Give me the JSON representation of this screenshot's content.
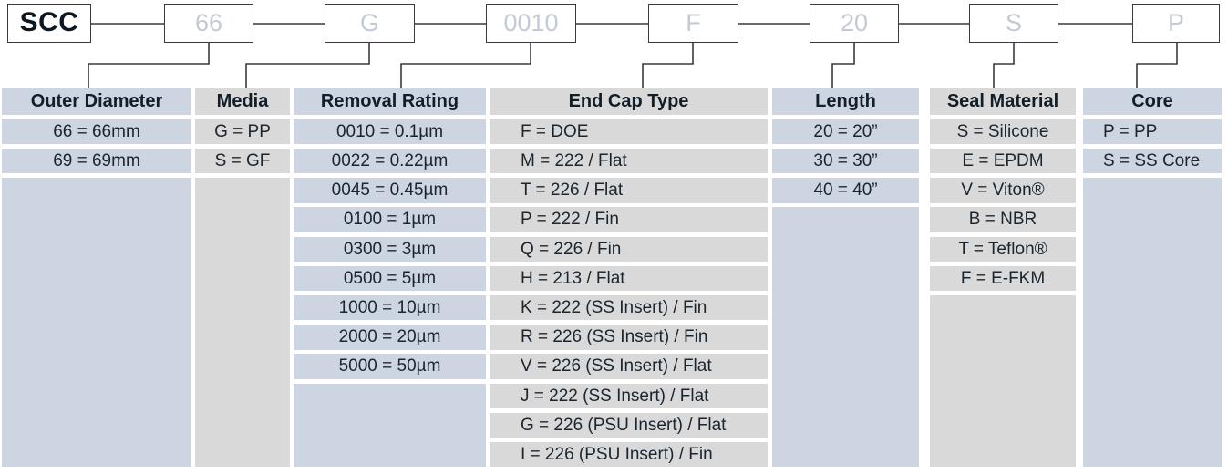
{
  "part_code": {
    "segments": [
      {
        "label": "SCC"
      },
      {
        "label": "66"
      },
      {
        "label": "G"
      },
      {
        "label": "0010"
      },
      {
        "label": "F"
      },
      {
        "label": "20"
      },
      {
        "label": "S"
      },
      {
        "label": "P"
      }
    ]
  },
  "table": {
    "columns": [
      {
        "header": "Outer Diameter",
        "entries": [
          "66 = 66mm",
          "69 = 69mm"
        ]
      },
      {
        "header": "Media",
        "entries": [
          "G = PP",
          "S = GF"
        ]
      },
      {
        "header": "Removal Rating",
        "entries": [
          "0010 = 0.1µm",
          "0022 = 0.22µm",
          "0045 = 0.45µm",
          "0100 = 1µm",
          "0300 = 3µm",
          "0500 = 5µm",
          "1000 = 10µm",
          "2000 = 20µm",
          "5000 = 50µm"
        ]
      },
      {
        "header": "End Cap Type",
        "entries": [
          "F = DOE",
          "M = 222 / Flat",
          "T = 226 / Flat",
          "P = 222 / Fin",
          "Q = 226 / Fin",
          "H = 213 / Flat",
          "K = 222 (SS Insert) / Fin",
          "R = 226 (SS Insert) / Fin",
          "V = 226 (SS Insert) / Flat",
          "J = 222 (SS Insert) / Flat",
          "G = 226 (PSU Insert) / Flat",
          "I = 226 (PSU Insert) / Fin"
        ]
      },
      {
        "header": "Length",
        "entries": [
          "20 = 20”",
          "30 = 30”",
          "40 = 40”"
        ]
      },
      {
        "header": "Seal Material",
        "entries": [
          "S = Silicone",
          "E = EPDM",
          "V = Viton®",
          "B = NBR",
          "T = Teflon®",
          "F = E-FKM"
        ]
      },
      {
        "header": "Core",
        "entries": [
          "P = PP",
          "S = SS Core"
        ]
      }
    ]
  },
  "colors": {
    "column_blue": "#cdd4e2",
    "column_gray": "#d9d9d9",
    "box_text_muted": "#c3cad6",
    "text_dark": "#121e28",
    "line": "#3a3a3a"
  }
}
